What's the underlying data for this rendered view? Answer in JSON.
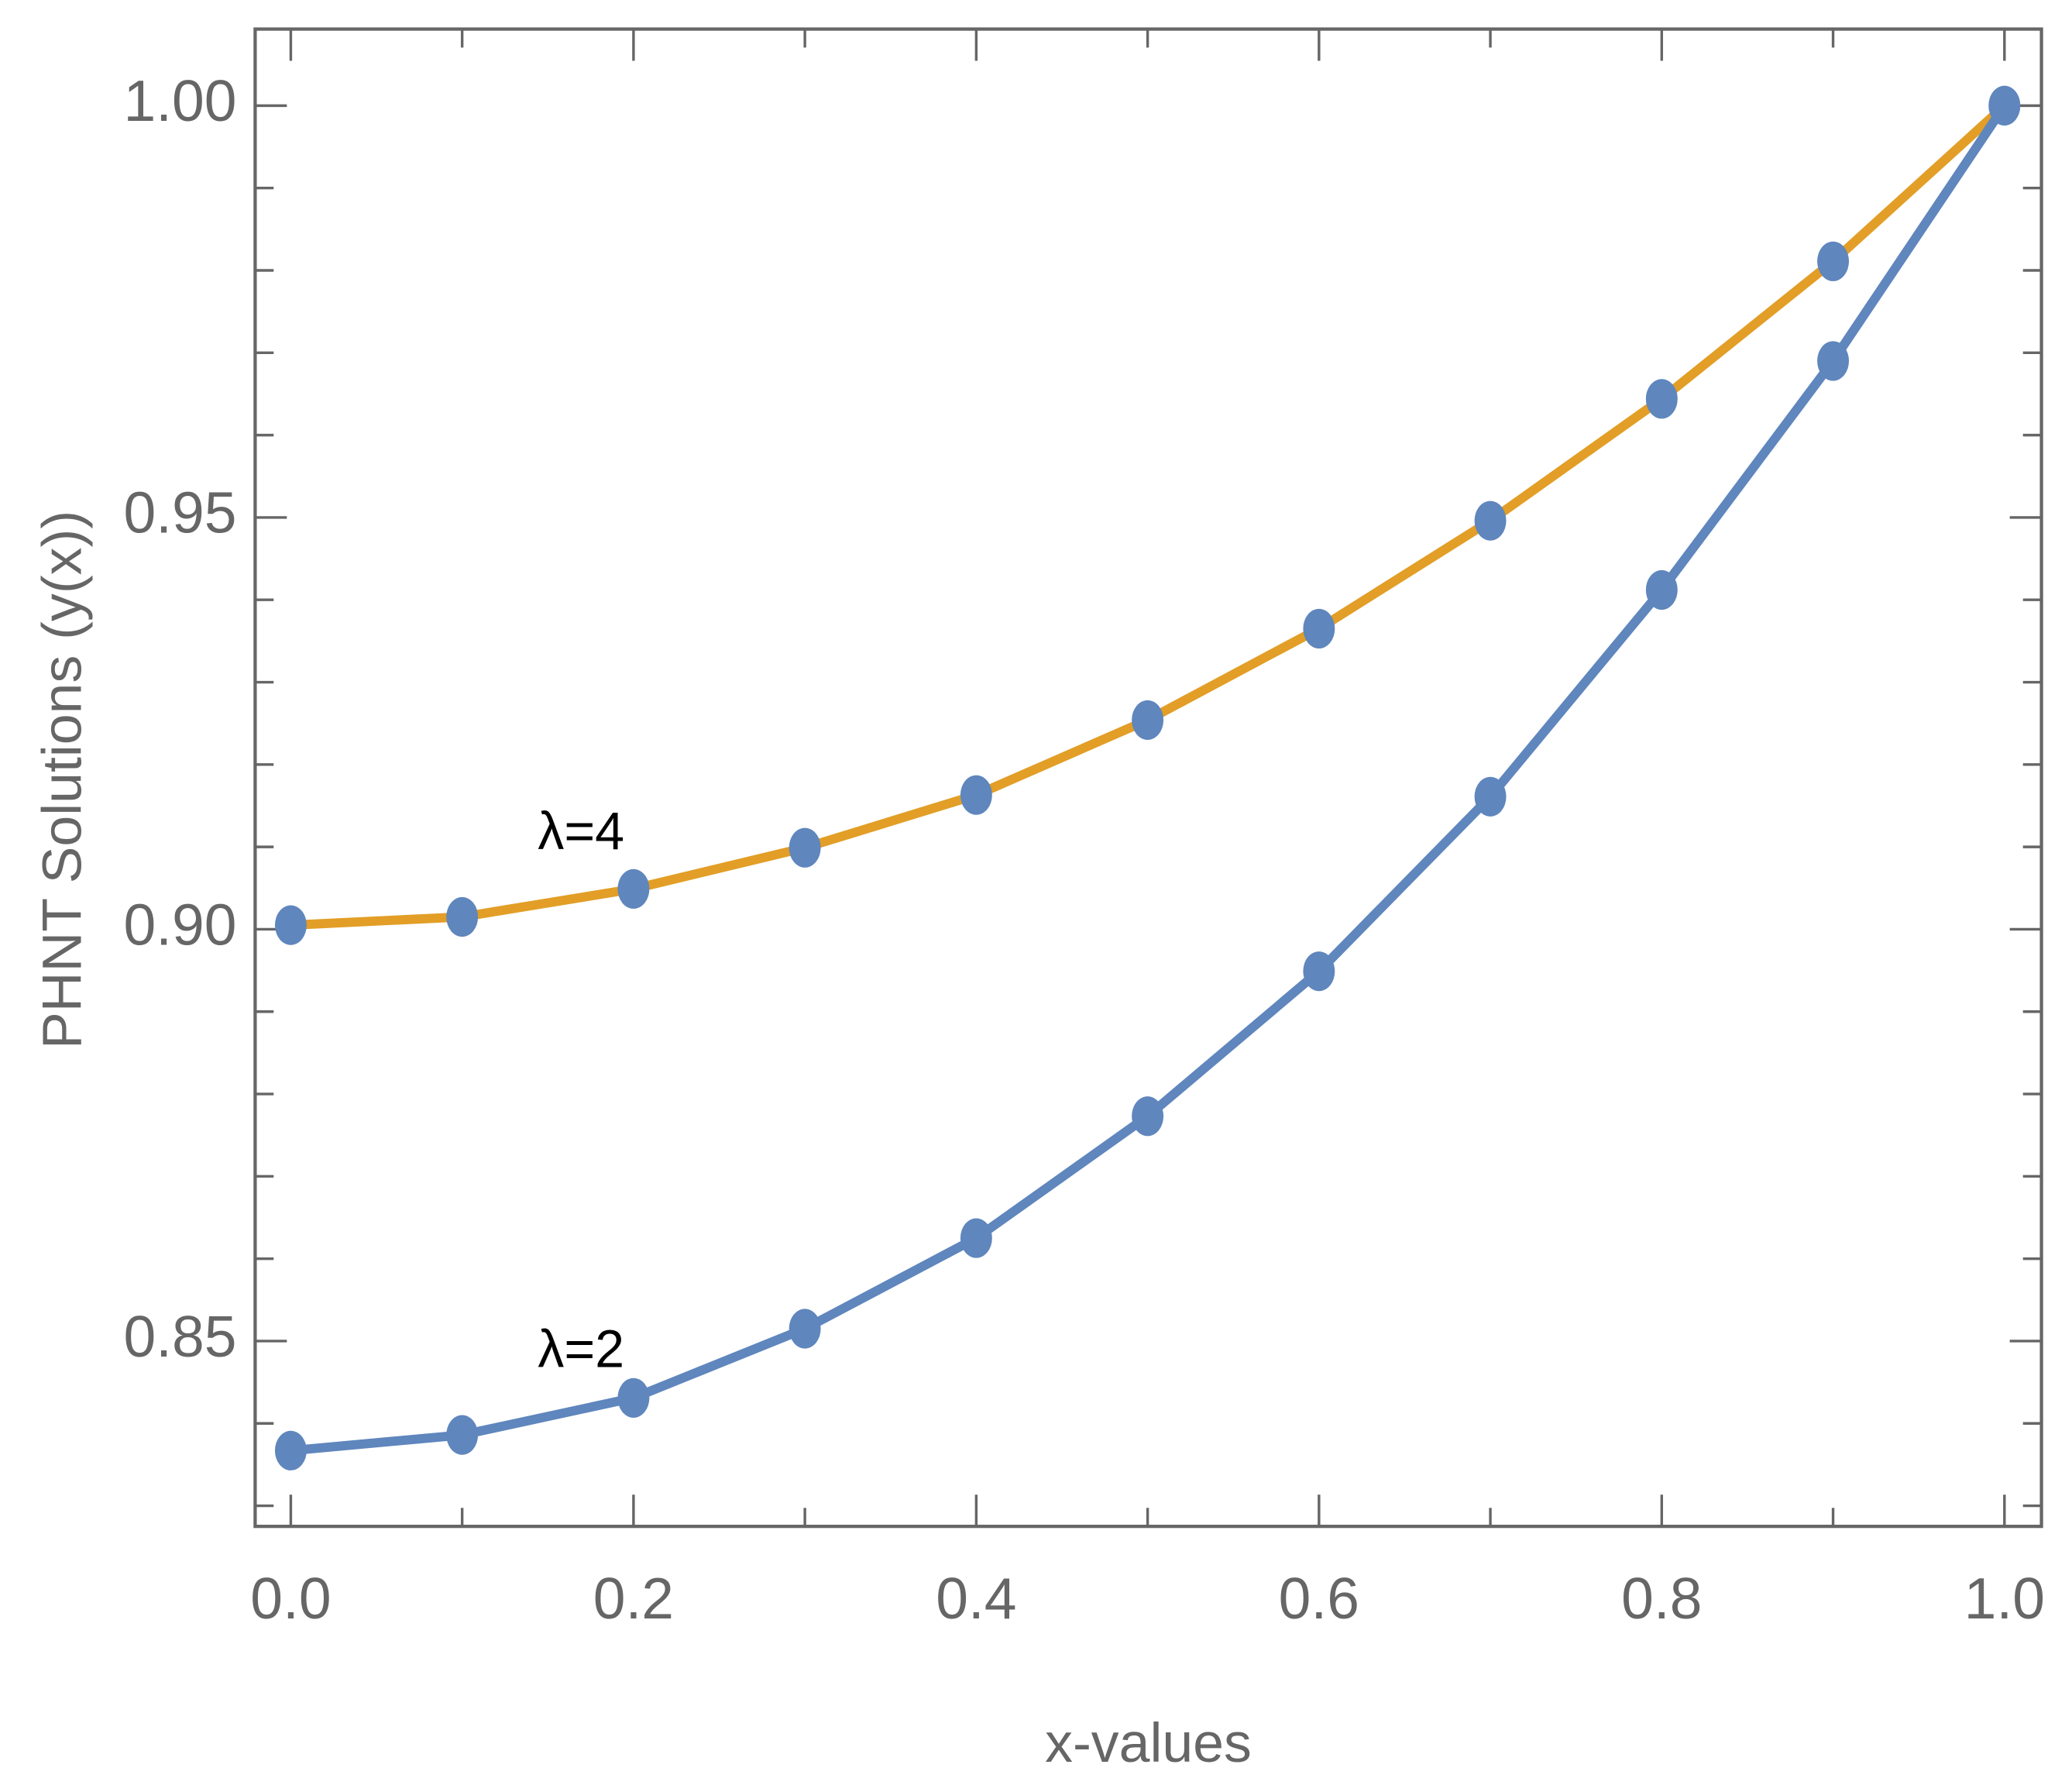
{
  "chart_data": {
    "type": "line",
    "xlabel": "x-values",
    "ylabel": "PHNT Solutions (y(x))",
    "x": [
      0.0,
      0.1,
      0.2,
      0.3,
      0.4,
      0.5,
      0.6,
      0.7,
      0.8,
      0.9,
      1.0
    ],
    "series": [
      {
        "name": "λ=4",
        "color": "#e29e26",
        "marker_color": "#5f86bd",
        "values": [
          0.9005,
          0.9015,
          0.9049,
          0.9099,
          0.9163,
          0.9254,
          0.9365,
          0.9496,
          0.9644,
          0.9811,
          1.0
        ]
      },
      {
        "name": "λ=2",
        "color": "#5f86bd",
        "marker_color": "#5f86bd",
        "values": [
          0.8367,
          0.8386,
          0.8431,
          0.8515,
          0.8625,
          0.8773,
          0.8949,
          0.9161,
          0.9412,
          0.969,
          1.0
        ]
      }
    ],
    "xlim": [
      -0.0208,
      1.0216
    ],
    "ylim": [
      0.8275,
      1.0093
    ],
    "xticks": [
      {
        "value": 0.0,
        "label": "0.0"
      },
      0.2,
      0.4,
      0.6,
      0.8,
      {
        "value": 1.0,
        "label": "1.0"
      }
    ],
    "yticks": [
      {
        "value": 0.85,
        "label": "0.85"
      },
      {
        "value": 0.9,
        "label": "0.90"
      },
      0.95,
      {
        "value": 1.0,
        "label": "1.00"
      }
    ],
    "grid": false
  }
}
